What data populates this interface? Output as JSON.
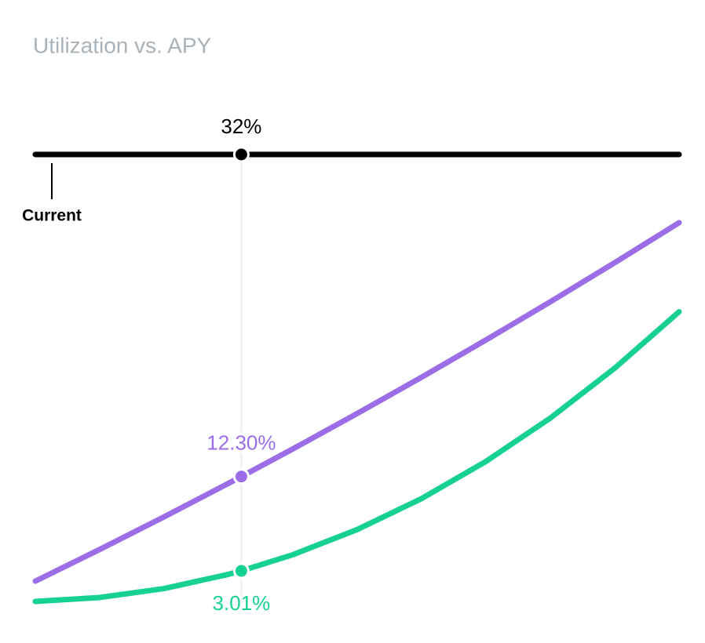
{
  "chart_data": {
    "type": "line",
    "title": "Utilization vs. APY",
    "x": [
      0,
      10,
      20,
      30,
      32,
      40,
      50,
      60,
      70,
      80,
      90,
      100
    ],
    "xlim": [
      0,
      100
    ],
    "ylim": [
      0,
      40
    ],
    "series": [
      {
        "color": "#9b6ee8",
        "values": [
          2.0,
          5.12,
          8.33,
          11.63,
          12.3,
          15.02,
          18.51,
          22.08,
          25.75,
          29.51,
          33.36,
          37.3
        ]
      },
      {
        "color": "#16d192",
        "values": [
          0,
          0.39,
          1.27,
          2.67,
          3.01,
          4.6,
          7.08,
          10.13,
          13.79,
          18.06,
          22.97,
          28.52
        ]
      }
    ],
    "slider": {
      "label": "Current",
      "value": 32,
      "value_label": "32%",
      "color": "#000000"
    },
    "highlight": {
      "x": 32,
      "values": [
        12.3,
        3.01
      ],
      "value_labels": [
        "12.30%",
        "3.01%"
      ]
    }
  }
}
